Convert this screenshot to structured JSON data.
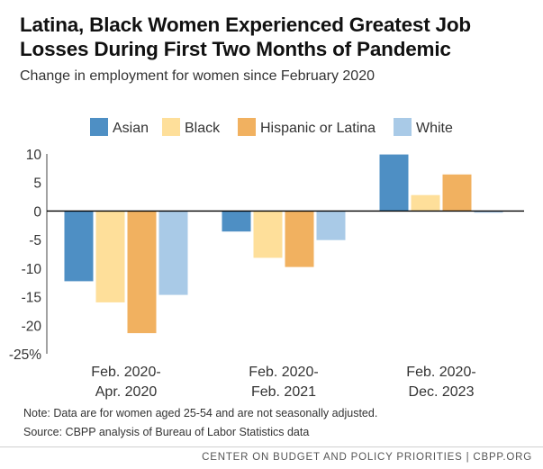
{
  "title": "Latina, Black Women Experienced Greatest Job Losses During First Two Months of Pandemic",
  "subtitle": "Change in employment for women since February 2020",
  "note": "Note: Data are for women aged 25-54 and are not seasonally adjusted.",
  "source": "Source: CBPP analysis of Bureau of Labor Statistics data",
  "footer": "CENTER ON BUDGET AND POLICY PRIORITIES | CBPP.ORG",
  "colors": {
    "Asian": "#4e8fc4",
    "Black": "#fedf9a",
    "Hispanic or Latina": "#f1b160",
    "White": "#a9cae7",
    "axis": "#444444",
    "zero_line": "#000000"
  },
  "chart_data": {
    "type": "bar",
    "title": "Latina, Black Women Experienced Greatest Job Losses During First Two Months of Pandemic",
    "ylabel": "",
    "xlabel": "",
    "ylim": [
      -25,
      10
    ],
    "yticks": [
      10,
      5,
      0,
      -5,
      -10,
      -15,
      -20,
      -25
    ],
    "ytick_labels": [
      "10",
      "5",
      "0",
      "-5",
      "-10",
      "-15",
      "-20",
      "-25%"
    ],
    "categories": [
      [
        "Feb. 2020-",
        "Apr. 2020"
      ],
      [
        "Feb. 2020-",
        "Feb. 2021"
      ],
      [
        "Feb. 2020-",
        "Dec. 2023"
      ]
    ],
    "series": [
      {
        "name": "Asian",
        "values": [
          -12.3,
          -3.6,
          9.9
        ]
      },
      {
        "name": "Black",
        "values": [
          -16.0,
          -8.2,
          2.8
        ]
      },
      {
        "name": "Hispanic or Latina",
        "values": [
          -21.4,
          -9.8,
          6.4
        ]
      },
      {
        "name": "White",
        "values": [
          -14.7,
          -5.1,
          -0.3
        ]
      }
    ],
    "legend": "top"
  }
}
